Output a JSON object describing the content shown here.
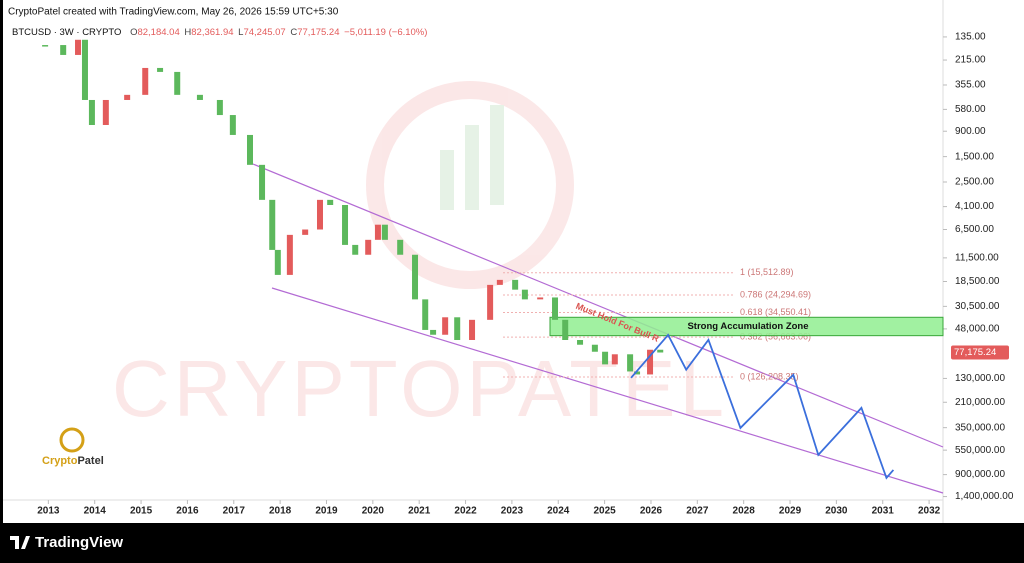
{
  "header": {
    "credit": "CryptoPatel created with TradingView.com, May 26, 2026 15:59 UTC+5:30",
    "symbol": "BTCUSD · 3W · CRYPTO",
    "ohlc": [
      {
        "key": "O",
        "value": "82,184.04"
      },
      {
        "key": "H",
        "value": "82,361.94"
      },
      {
        "key": "L",
        "value": "74,245.07"
      },
      {
        "key": "C",
        "value": "77,175.24"
      }
    ],
    "change": "−5,011.19 (−6.10%)"
  },
  "chart_data": {
    "type": "candlestick",
    "log_scale": true,
    "y_inverted": true,
    "grid": false,
    "up_color": "#5cb85c",
    "down_color": "#e35b5b",
    "x": [
      2012.93,
      2013.32,
      2013.64,
      2013.79,
      2013.94,
      2014.24,
      2014.7,
      2015.09,
      2015.41,
      2015.78,
      2016.27,
      2016.7,
      2016.98,
      2017.35,
      2017.61,
      2017.83,
      2017.95,
      2018.21,
      2018.54,
      2018.86,
      2019.08,
      2019.4,
      2019.62,
      2019.9,
      2020.11,
      2020.26,
      2020.59,
      2020.91,
      2021.13,
      2021.3,
      2021.56,
      2021.82,
      2022.14,
      2022.53,
      2022.74,
      2023.07,
      2023.28,
      2023.61,
      2023.93,
      2024.15,
      2024.47,
      2024.79,
      2025.01,
      2025.22,
      2025.55,
      2025.7,
      2025.98,
      2026.2
    ],
    "values": [
      159,
      194,
      143,
      480,
      794,
      480,
      433,
      252,
      273,
      433,
      480,
      650,
      970,
      1770,
      3580,
      9800,
      16200,
      7240,
      6500,
      3580,
      3970,
      8860,
      10800,
      8000,
      5900,
      8000,
      10800,
      26500,
      49000,
      54000,
      38000,
      60000,
      40000,
      19800,
      17900,
      21800,
      26500,
      25500,
      40000,
      60000,
      66000,
      76000,
      98000,
      80000,
      113000,
      120000,
      73000,
      77175.24
    ],
    "projection": {
      "color": "#3b6fdc",
      "x": [
        2025.57,
        2026.37,
        2026.76,
        2027.24,
        2027.93,
        2029.07,
        2029.61,
        2030.54,
        2031.08,
        2031.23
      ],
      "values": [
        128500,
        54200,
        109000,
        59800,
        352000,
        121000,
        605000,
        235000,
        962000,
        819000
      ]
    },
    "xlim": [
      2012,
      2032.3
    ],
    "xticks": [
      2013,
      2014,
      2015,
      2016,
      2017,
      2018,
      2019,
      2020,
      2021,
      2022,
      2023,
      2024,
      2025,
      2026,
      2027,
      2028,
      2029,
      2030,
      2031,
      2032
    ],
    "ylim": [
      100,
      1500000
    ],
    "yticks": [
      {
        "value": 135,
        "label": "135.00"
      },
      {
        "value": 215,
        "label": "215.00"
      },
      {
        "value": 355,
        "label": "355.00"
      },
      {
        "value": 580,
        "label": "580.00"
      },
      {
        "value": 900,
        "label": "900.00"
      },
      {
        "value": 1500,
        "label": "1,500.00"
      },
      {
        "value": 2500,
        "label": "2,500.00"
      },
      {
        "value": 4100,
        "label": "4,100.00"
      },
      {
        "value": 6500,
        "label": "6,500.00"
      },
      {
        "value": 11500,
        "label": "11,500.00"
      },
      {
        "value": 18500,
        "label": "18,500.00"
      },
      {
        "value": 30500,
        "label": "30,500.00"
      },
      {
        "value": 48000,
        "label": "48,000.00"
      },
      {
        "value": 130000,
        "label": "130,000.00"
      },
      {
        "value": 210000,
        "label": "210,000.00"
      },
      {
        "value": 350000,
        "label": "350,000.00"
      },
      {
        "value": 550000,
        "label": "550,000.00"
      },
      {
        "value": 900000,
        "label": "900,000.00"
      },
      {
        "value": 1400000,
        "label": "1,400,000.00"
      }
    ],
    "last_price": {
      "value": 77175.24,
      "label": "77,175.24"
    },
    "fib": [
      {
        "value": 15512.89,
        "label": "1 (15,512.89)"
      },
      {
        "value": 24294.69,
        "label": "0.786 (24,294.69)"
      },
      {
        "value": 34550.41,
        "label": "0.618 (34,550.41)"
      },
      {
        "value": 56663.06,
        "label": "0.382 (56,663.06)"
      },
      {
        "value": 126208.35,
        "label": "0 (126,208.35)"
      }
    ],
    "zone": {
      "label": "Strong Accumulation Zone",
      "range": [
        38000,
        55000
      ]
    },
    "annotation": "Must Hold For Bull R"
  },
  "watermark": "CRYPTOPATEL",
  "logo": {
    "part1": "Crypto",
    "part2": "Patel"
  },
  "footer": "TradingView"
}
